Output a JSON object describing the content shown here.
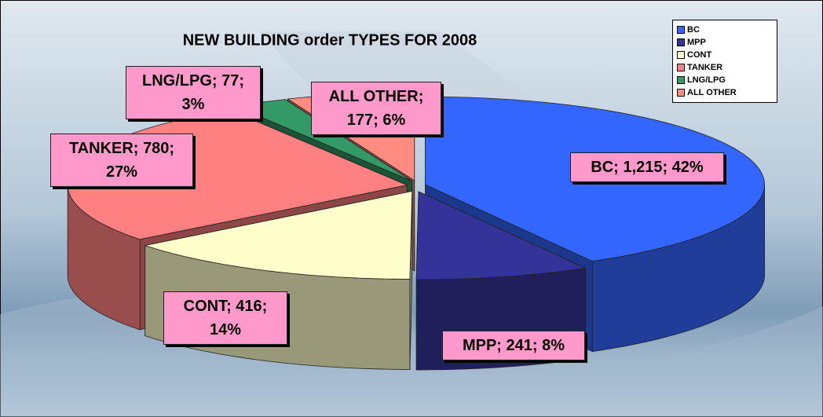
{
  "chart_data": {
    "type": "pie3d",
    "title": "NEW BUILDING order TYPES FOR 2008",
    "categories": [
      "BC",
      "MPP",
      "CONT",
      "TANKER",
      "LNG/LPG",
      "ALL OTHER"
    ],
    "values": [
      1215,
      241,
      416,
      780,
      77,
      177
    ],
    "value_labels": [
      "BC; 1,215; 42%",
      "MPP; 241; 8%",
      "CONT; 416; 14%",
      "TANKER; 780; 27%",
      "LNG/LPG; 77; 3%",
      "ALL OTHER; 177; 6%"
    ],
    "colors": [
      "#3366ff",
      "#333399",
      "#ffffcc",
      "#ff8080",
      "#339966",
      "#ff8c80"
    ],
    "legend": "top-right"
  }
}
